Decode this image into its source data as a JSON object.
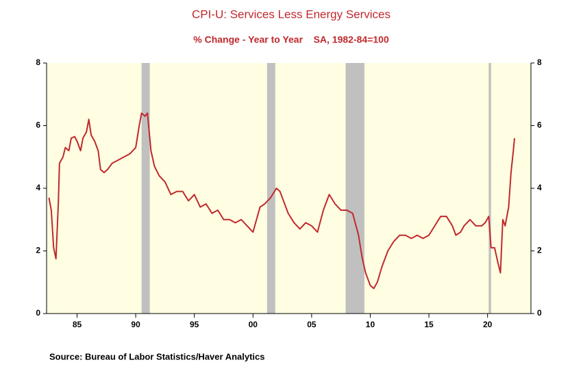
{
  "chart_data": {
    "type": "line",
    "title": "CPI-U: Services Less Energy Services",
    "subtitle": "% Change - Year to Year    SA, 1982-84=100",
    "source": "Source:  Bureau of Labor Statistics/Haver Analytics",
    "xlim": [
      1982.4,
      2023.7
    ],
    "xticks": [
      {
        "value": 1985,
        "label": "85"
      },
      {
        "value": 1990,
        "label": "90"
      },
      {
        "value": 1995,
        "label": "95"
      },
      {
        "value": 2000,
        "label": "00"
      },
      {
        "value": 2005,
        "label": "05"
      },
      {
        "value": 2010,
        "label": "10"
      },
      {
        "value": 2015,
        "label": "15"
      },
      {
        "value": 2020,
        "label": "20"
      }
    ],
    "ylim": [
      0,
      8
    ],
    "yticks": [
      0,
      2,
      4,
      6,
      8
    ],
    "y2lim": [
      0,
      8
    ],
    "y2ticks": [
      0,
      2,
      4,
      6,
      8
    ],
    "shaded_periods": [
      [
        1990.5,
        1991.2
      ],
      [
        2001.2,
        2001.9
      ],
      [
        2007.9,
        2009.5
      ],
      [
        2020.1,
        2020.3
      ]
    ],
    "shade_color": "#c0c0c0",
    "background": "#fffde2",
    "x": [
      1982.6,
      1982.8,
      1983.0,
      1983.2,
      1983.4,
      1983.5,
      1983.8,
      1984.0,
      1984.3,
      1984.5,
      1984.8,
      1985.0,
      1985.3,
      1985.5,
      1985.8,
      1986.0,
      1986.2,
      1986.5,
      1986.8,
      1987.0,
      1987.3,
      1987.6,
      1988.0,
      1988.5,
      1989.0,
      1989.5,
      1990.0,
      1990.3,
      1990.5,
      1990.8,
      1991.0,
      1991.3,
      1991.6,
      1992.0,
      1992.5,
      1993.0,
      1993.5,
      1994.0,
      1994.5,
      1995.0,
      1995.5,
      1996.0,
      1996.5,
      1997.0,
      1997.5,
      1998.0,
      1998.5,
      1999.0,
      1999.5,
      2000.0,
      2000.3,
      2000.6,
      2001.0,
      2001.5,
      2002.0,
      2002.3,
      2002.6,
      2003.0,
      2003.5,
      2004.0,
      2004.5,
      2005.0,
      2005.5,
      2006.0,
      2006.5,
      2007.0,
      2007.5,
      2008.0,
      2008.5,
      2009.0,
      2009.3,
      2009.6,
      2010.0,
      2010.3,
      2010.6,
      2011.0,
      2011.5,
      2012.0,
      2012.5,
      2013.0,
      2013.5,
      2014.0,
      2014.5,
      2015.0,
      2015.5,
      2016.0,
      2016.5,
      2017.0,
      2017.3,
      2017.7,
      2018.0,
      2018.5,
      2019.0,
      2019.5,
      2019.8,
      2020.1,
      2020.3,
      2020.6,
      2020.9,
      2021.1,
      2021.3,
      2021.5,
      2021.8,
      2022.0,
      2022.2,
      2022.3
    ],
    "series": [
      {
        "name": "CPI-U: Services Less Energy Services",
        "color": "#c0282d",
        "values": [
          3.7,
          3.3,
          2.1,
          1.75,
          3.5,
          4.8,
          5.0,
          5.3,
          5.2,
          5.6,
          5.65,
          5.5,
          5.2,
          5.6,
          5.8,
          6.2,
          5.7,
          5.5,
          5.2,
          4.6,
          4.5,
          4.6,
          4.8,
          4.9,
          5.0,
          5.1,
          5.3,
          6.0,
          6.4,
          6.3,
          6.4,
          5.2,
          4.7,
          4.4,
          4.2,
          3.8,
          3.9,
          3.9,
          3.6,
          3.8,
          3.4,
          3.5,
          3.2,
          3.3,
          3.0,
          3.0,
          2.9,
          3.0,
          2.8,
          2.6,
          3.0,
          3.4,
          3.5,
          3.7,
          4.0,
          3.9,
          3.6,
          3.2,
          2.9,
          2.7,
          2.9,
          2.8,
          2.6,
          3.3,
          3.8,
          3.5,
          3.3,
          3.3,
          3.2,
          2.5,
          1.8,
          1.3,
          0.9,
          0.8,
          1.0,
          1.5,
          2.0,
          2.3,
          2.5,
          2.5,
          2.4,
          2.5,
          2.4,
          2.5,
          2.8,
          3.1,
          3.1,
          2.8,
          2.5,
          2.6,
          2.8,
          3.0,
          2.8,
          2.8,
          2.9,
          3.1,
          2.1,
          2.1,
          1.6,
          1.3,
          3.0,
          2.8,
          3.4,
          4.5,
          5.2,
          5.6
        ]
      }
    ]
  }
}
